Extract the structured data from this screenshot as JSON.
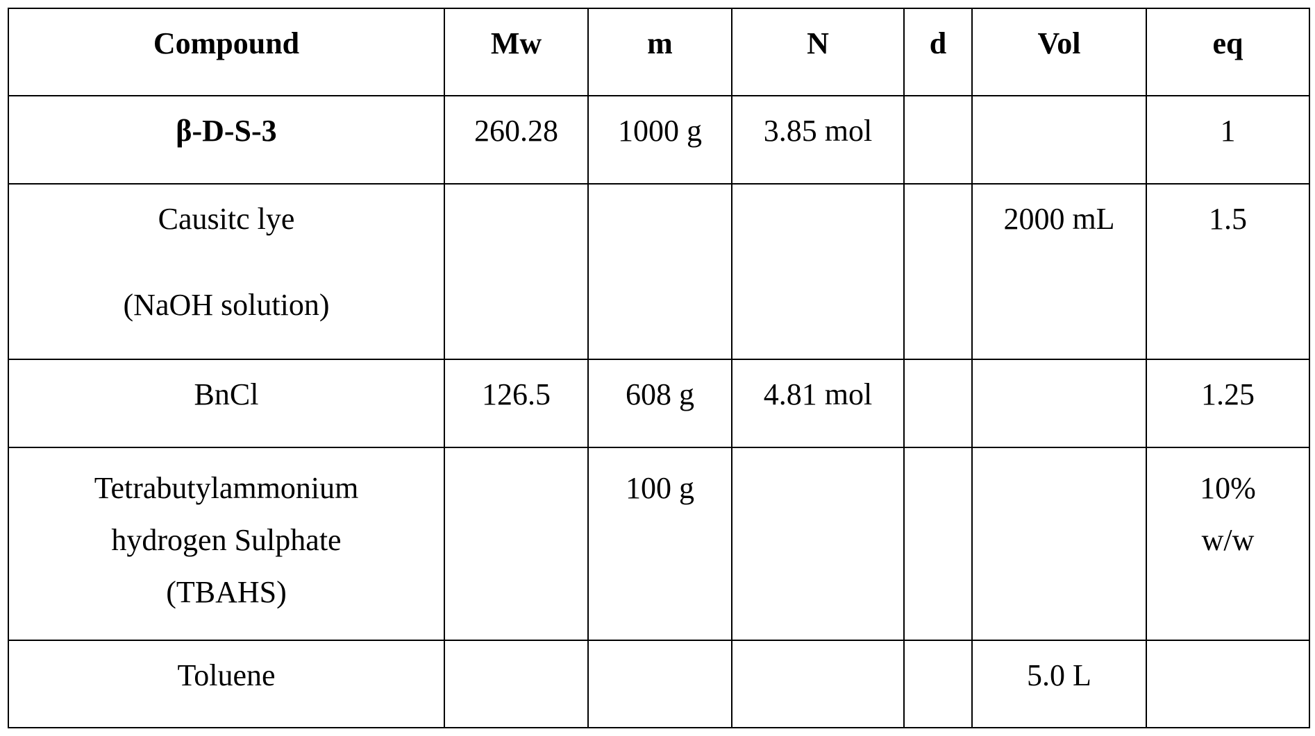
{
  "table": {
    "headers": [
      "Compound",
      "Mw",
      "m",
      "N",
      "d",
      "Vol",
      "eq"
    ],
    "rows": [
      {
        "compound": [
          "β-D-S-3"
        ],
        "compound_bold": true,
        "mw": "260.28",
        "m": "1000 g",
        "n": "3.85 mol",
        "d": "",
        "vol": "",
        "eq": [
          "1"
        ]
      },
      {
        "compound": [
          "Causitc lye",
          "(NaOH solution)"
        ],
        "compound_bold": false,
        "mw": "",
        "m": "",
        "n": "",
        "d": "",
        "vol": "2000 mL",
        "eq": [
          "1.5"
        ]
      },
      {
        "compound": [
          "BnCl"
        ],
        "compound_bold": false,
        "mw": "126.5",
        "m": "608 g",
        "n": "4.81 mol",
        "d": "",
        "vol": "",
        "eq": [
          "1.25"
        ]
      },
      {
        "compound": [
          "Tetrabutylammonium",
          "hydrogen Sulphate",
          "(TBAHS)"
        ],
        "compound_bold": false,
        "mw": "",
        "m": "100 g",
        "n": "",
        "d": "",
        "vol": "",
        "eq": [
          "10%",
          "w/w"
        ]
      },
      {
        "compound": [
          "Toluene"
        ],
        "compound_bold": false,
        "mw": "",
        "m": "",
        "n": "",
        "d": "",
        "vol": "5.0 L",
        "eq": [
          ""
        ]
      }
    ]
  }
}
